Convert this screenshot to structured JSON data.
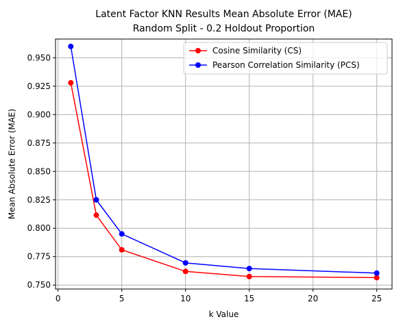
{
  "chart_data": {
    "type": "line",
    "title": [
      "Latent Factor KNN Results Mean Absolute Error (MAE)",
      "Random Split - 0.2 Holdout Proportion"
    ],
    "xlabel": "k Value",
    "ylabel": "Mean Absolute Error (MAE)",
    "xlim": [
      -0.2,
      26.2
    ],
    "ylim": [
      0.7465,
      0.9665
    ],
    "xticks": [
      0,
      5,
      10,
      15,
      20,
      25
    ],
    "xtick_labels": [
      "0",
      "5",
      "10",
      "15",
      "20",
      "25"
    ],
    "yticks": [
      0.75,
      0.775,
      0.8,
      0.825,
      0.85,
      0.875,
      0.9,
      0.925,
      0.95
    ],
    "ytick_labels": [
      "0.750",
      "0.775",
      "0.800",
      "0.825",
      "0.850",
      "0.875",
      "0.900",
      "0.925",
      "0.950"
    ],
    "grid": true,
    "legend_position": "top-right",
    "x": [
      1,
      3,
      5,
      10,
      15,
      25
    ],
    "series": [
      {
        "name": "Cosine Similarity (CS)",
        "color": "#ff0000",
        "values": [
          0.928,
          0.8115,
          0.781,
          0.762,
          0.7575,
          0.7565
        ]
      },
      {
        "name": "Pearson Correlation Similarity (PCS)",
        "color": "#0000ff",
        "values": [
          0.96,
          0.825,
          0.795,
          0.7695,
          0.7645,
          0.7605
        ]
      }
    ]
  }
}
